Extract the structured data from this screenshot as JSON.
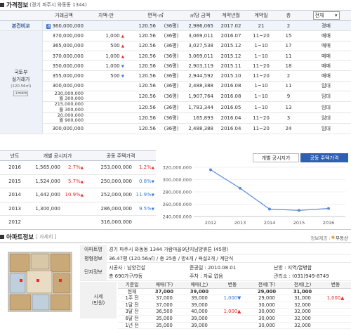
{
  "price_section": {
    "title": "가격정보",
    "location": "(경기 파주시 와동동 1344)"
  },
  "price_table": {
    "headers": [
      "거래금액",
      "차액-만",
      "면적-㎡",
      "㎡당 금액",
      "계약년월",
      "계약일",
      "층"
    ],
    "filter_value": "전체",
    "base_label": "본건비교",
    "base_row": [
      "360,000,000",
      "",
      "120.56",
      "(36평)",
      "2,986,065",
      "2017.02",
      "21",
      "2",
      "경매"
    ],
    "group_label_1": "국토부",
    "group_label_2": "실거래가",
    "group_label_3": "(120.56㎡)",
    "more_label": "+more",
    "rows": [
      {
        "price": "370,000,000",
        "diff": "1,000",
        "dir": "▲",
        "area": "120.56",
        "py": "(36평)",
        "unit": "3,069,011",
        "ym": "2016.07",
        "day": "11~20",
        "floor": "15",
        "type": "매매"
      },
      {
        "price": "365,000,000",
        "diff": "500",
        "dir": "▲",
        "area": "120.56",
        "py": "(36평)",
        "unit": "3,027,538",
        "ym": "2015.12",
        "day": "1~10",
        "floor": "17",
        "type": "매매"
      },
      {
        "price": "370,000,000",
        "diff": "1,000",
        "dir": "▲",
        "area": "120.56",
        "py": "(36평)",
        "unit": "3,069,011",
        "ym": "2015.12",
        "day": "1~10",
        "floor": "11",
        "type": "매매"
      },
      {
        "price": "350,000,000",
        "diff": "1,000",
        "dir": "▼",
        "area": "120.56",
        "py": "(36평)",
        "unit": "2,903,119",
        "ym": "2015.11",
        "day": "11~20",
        "floor": "18",
        "type": "매매"
      },
      {
        "price": "355,000,000",
        "diff": "500",
        "dir": "▼",
        "area": "120.56",
        "py": "(36평)",
        "unit": "2,944,592",
        "ym": "2015.10",
        "day": "11~20",
        "floor": "2",
        "type": "매매"
      },
      {
        "price": "300,000,000",
        "diff": "",
        "dir": "",
        "area": "120.56",
        "py": "(36평)",
        "unit": "2,488,388",
        "ym": "2016.08",
        "day": "1~10",
        "floor": "11",
        "type": "임대"
      },
      {
        "price": "230,000,000",
        "price2": "월 300,000",
        "diff": "",
        "dir": "",
        "area": "120.56",
        "py": "(36평)",
        "unit": "1,907,764",
        "ym": "2016.08",
        "day": "1~10",
        "floor": "9",
        "type": "임대"
      },
      {
        "price": "215,000,000",
        "price2": "월 300,000",
        "diff": "",
        "dir": "",
        "area": "120.56",
        "py": "(36평)",
        "unit": "1,783,344",
        "ym": "2016.05",
        "day": "1~10",
        "floor": "13",
        "type": "임대"
      },
      {
        "price": "20,000,000",
        "price2": "월 900,000",
        "diff": "",
        "dir": "",
        "area": "120.56",
        "py": "(36평)",
        "unit": "165,893",
        "ym": "2016.04",
        "day": "11~20",
        "floor": "3",
        "type": "임대"
      },
      {
        "price": "300,000,000",
        "diff": "",
        "dir": "",
        "area": "120.56",
        "py": "(36평)",
        "unit": "2,488,388",
        "ym": "2016.04",
        "day": "11~20",
        "floor": "24",
        "type": "임대"
      }
    ]
  },
  "tax_table": {
    "headers": [
      "년도",
      "개별 공시지가",
      "공동 주택가격"
    ],
    "rows": [
      {
        "year": "2016",
        "land": "1,565,000",
        "land_pct": "2.7%",
        "land_dir": "▲",
        "house": "253,000,000",
        "house_pct": "1.2%",
        "house_dir": "▲"
      },
      {
        "year": "2015",
        "land": "1,524,000",
        "land_pct": "5.7%",
        "land_dir": "▲",
        "house": "250,000,000",
        "house_pct": "0.8%",
        "house_dir": "▼"
      },
      {
        "year": "2014",
        "land": "1,442,000",
        "land_pct": "10.9%",
        "land_dir": "▲",
        "house": "252,000,000",
        "house_pct": "11.9%",
        "house_dir": "▼"
      },
      {
        "year": "2013",
        "land": "1,300,000",
        "land_pct": "",
        "land_dir": "",
        "house": "286,000,000",
        "house_pct": "9.5%",
        "house_dir": "▼"
      },
      {
        "year": "2012",
        "land": "",
        "land_pct": "",
        "land_dir": "",
        "house": "316,000,000",
        "house_pct": "",
        "house_dir": ""
      }
    ]
  },
  "chart_tabs": {
    "tab1": "개별 공시지가",
    "tab2": "공동 주택가격"
  },
  "chart_data": {
    "type": "line",
    "x": [
      "2012",
      "2013",
      "2014",
      "2015",
      "2016"
    ],
    "y_tick_labels": [
      "320,000,000",
      "300,000,000",
      "280,000,000",
      "260,000,000",
      "240,000,000"
    ],
    "y_ticks": [
      320000000,
      300000000,
      280000000,
      260000000,
      240000000
    ],
    "ylim": [
      240000000,
      320000000
    ],
    "series": [
      {
        "values": [
          316000000,
          286000000,
          252000000,
          250000000,
          253000000
        ]
      }
    ],
    "color": "#5b8bd8"
  },
  "apt_section": {
    "title": "아파트정보",
    "detail_label": "[ 자세히 ]",
    "provider": "정보제공 :",
    "provider_name": "부동산"
  },
  "apt_info": {
    "name_label": "아파트명",
    "name_value": "경기 파주시 와동동 1344 가람마을9단지남양휴튼 (45평)",
    "area_label": "평형정보",
    "area_value": "36.47평 (120.56㎡) / 총 25층 / 방4개 / 욕실2개 / 계단식",
    "complex_label": "단지정보",
    "builder": "시공사 : 남양건설",
    "completed": "준공일 : 2010.08.01",
    "heating": "난방 : 지역/열병합",
    "units": "총 690가구/9동",
    "parking": "주차 : 자료 없음",
    "office": "관리소 : (031)949-8749"
  },
  "quote": {
    "side_label_1": "시세",
    "side_label_2": "(만원)",
    "headers": [
      "기준일",
      "매매(下)",
      "매매(上)",
      "변동",
      "전세(下)",
      "전세(上)",
      "변동"
    ],
    "rows": [
      [
        "현재",
        "37,000",
        "39,000",
        "",
        "29,000",
        "31,000",
        ""
      ],
      [
        "1주 전",
        "37,000",
        "39,000",
        "1,000▼",
        "29,000",
        "31,000",
        "1,000▲"
      ],
      [
        "1달 전",
        "37,000",
        "39,000",
        "",
        "30,000",
        "32,000",
        ""
      ],
      [
        "3달 전",
        "36,500",
        "40,000",
        "1,000▲",
        "30,000",
        "32,000",
        ""
      ],
      [
        "6달 전",
        "35,000",
        "39,000",
        "",
        "30,000",
        "32,000",
        ""
      ],
      [
        "1년 전",
        "35,000",
        "39,000",
        "",
        "30,000",
        "32,000",
        ""
      ]
    ]
  }
}
